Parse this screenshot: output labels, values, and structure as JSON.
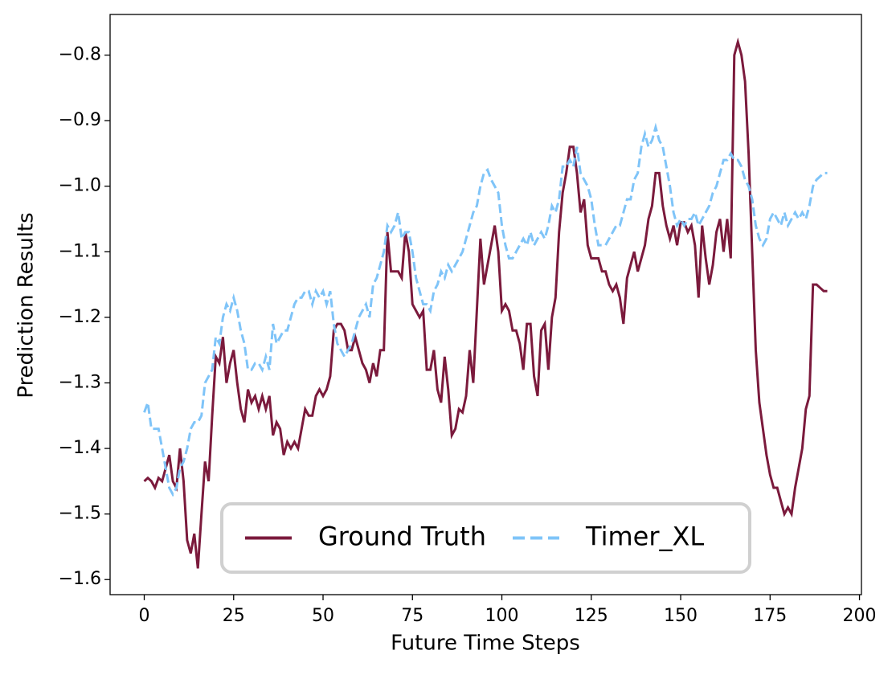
{
  "chart_data": {
    "type": "line",
    "x_label": "Future Time Steps",
    "y_label": "Prediction Results",
    "x": [
      0,
      1,
      2,
      3,
      4,
      5,
      6,
      7,
      8,
      9,
      10,
      11,
      12,
      13,
      14,
      15,
      16,
      17,
      18,
      19,
      20,
      21,
      22,
      23,
      24,
      25,
      26,
      27,
      28,
      29,
      30,
      31,
      32,
      33,
      34,
      35,
      36,
      37,
      38,
      39,
      40,
      41,
      42,
      43,
      44,
      45,
      46,
      47,
      48,
      49,
      50,
      51,
      52,
      53,
      54,
      55,
      56,
      57,
      58,
      59,
      60,
      61,
      62,
      63,
      64,
      65,
      66,
      67,
      68,
      69,
      70,
      71,
      72,
      73,
      74,
      75,
      76,
      77,
      78,
      79,
      80,
      81,
      82,
      83,
      84,
      85,
      86,
      87,
      88,
      89,
      90,
      91,
      92,
      93,
      94,
      95,
      96,
      97,
      98,
      99,
      100,
      101,
      102,
      103,
      104,
      105,
      106,
      107,
      108,
      109,
      110,
      111,
      112,
      113,
      114,
      115,
      116,
      117,
      118,
      119,
      120,
      121,
      122,
      123,
      124,
      125,
      126,
      127,
      128,
      129,
      130,
      131,
      132,
      133,
      134,
      135,
      136,
      137,
      138,
      139,
      140,
      141,
      142,
      143,
      144,
      145,
      146,
      147,
      148,
      149,
      150,
      151,
      152,
      153,
      154,
      155,
      156,
      157,
      158,
      159,
      160,
      161,
      162,
      163,
      164,
      165,
      166,
      167,
      168,
      169,
      170,
      171,
      172,
      173,
      174,
      175,
      176,
      177,
      178,
      179,
      180,
      181,
      182,
      183,
      184,
      185,
      186,
      187,
      188,
      189,
      190,
      191
    ],
    "series": [
      {
        "name": "Ground Truth",
        "color": "#7b1a3c",
        "style": "solid",
        "values": [
          -1.45,
          -1.445,
          -1.45,
          -1.46,
          -1.445,
          -1.45,
          -1.43,
          -1.41,
          -1.45,
          -1.46,
          -1.4,
          -1.45,
          -1.54,
          -1.56,
          -1.53,
          -1.583,
          -1.5,
          -1.42,
          -1.45,
          -1.35,
          -1.26,
          -1.27,
          -1.23,
          -1.3,
          -1.27,
          -1.25,
          -1.3,
          -1.34,
          -1.36,
          -1.31,
          -1.33,
          -1.32,
          -1.34,
          -1.32,
          -1.34,
          -1.32,
          -1.38,
          -1.36,
          -1.37,
          -1.41,
          -1.39,
          -1.4,
          -1.39,
          -1.4,
          -1.37,
          -1.34,
          -1.35,
          -1.35,
          -1.32,
          -1.31,
          -1.32,
          -1.31,
          -1.29,
          -1.22,
          -1.21,
          -1.21,
          -1.22,
          -1.25,
          -1.25,
          -1.23,
          -1.25,
          -1.27,
          -1.28,
          -1.3,
          -1.27,
          -1.29,
          -1.25,
          -1.25,
          -1.07,
          -1.13,
          -1.13,
          -1.13,
          -1.14,
          -1.07,
          -1.1,
          -1.18,
          -1.19,
          -1.2,
          -1.19,
          -1.28,
          -1.28,
          -1.25,
          -1.31,
          -1.33,
          -1.26,
          -1.31,
          -1.38,
          -1.37,
          -1.34,
          -1.345,
          -1.32,
          -1.25,
          -1.3,
          -1.19,
          -1.08,
          -1.15,
          -1.12,
          -1.09,
          -1.06,
          -1.1,
          -1.19,
          -1.18,
          -1.19,
          -1.22,
          -1.22,
          -1.24,
          -1.28,
          -1.21,
          -1.21,
          -1.29,
          -1.32,
          -1.22,
          -1.21,
          -1.28,
          -1.2,
          -1.17,
          -1.07,
          -1.01,
          -0.98,
          -0.94,
          -0.94,
          -0.98,
          -1.04,
          -1.02,
          -1.09,
          -1.11,
          -1.11,
          -1.11,
          -1.13,
          -1.13,
          -1.15,
          -1.16,
          -1.15,
          -1.17,
          -1.21,
          -1.14,
          -1.12,
          -1.1,
          -1.13,
          -1.11,
          -1.09,
          -1.05,
          -1.03,
          -0.98,
          -0.98,
          -1.03,
          -1.06,
          -1.08,
          -1.06,
          -1.09,
          -1.055,
          -1.055,
          -1.07,
          -1.06,
          -1.09,
          -1.17,
          -1.06,
          -1.11,
          -1.15,
          -1.12,
          -1.07,
          -1.05,
          -1.1,
          -1.05,
          -1.11,
          -0.8,
          -0.78,
          -0.8,
          -0.84,
          -0.95,
          -1.1,
          -1.25,
          -1.33,
          -1.37,
          -1.41,
          -1.44,
          -1.46,
          -1.46,
          -1.48,
          -1.5,
          -1.49,
          -1.5,
          -1.46,
          -1.43,
          -1.4,
          -1.34,
          -1.32,
          -1.15,
          -1.15,
          -1.155,
          -1.16,
          -1.16
        ]
      },
      {
        "name": "Timer_XL",
        "color": "#7fc4f8",
        "style": "dashed",
        "values": [
          -1.345,
          -1.33,
          -1.37,
          -1.37,
          -1.37,
          -1.4,
          -1.43,
          -1.46,
          -1.47,
          -1.46,
          -1.43,
          -1.42,
          -1.4,
          -1.37,
          -1.36,
          -1.36,
          -1.35,
          -1.3,
          -1.29,
          -1.28,
          -1.23,
          -1.24,
          -1.2,
          -1.18,
          -1.19,
          -1.17,
          -1.19,
          -1.22,
          -1.24,
          -1.28,
          -1.28,
          -1.27,
          -1.27,
          -1.28,
          -1.26,
          -1.28,
          -1.21,
          -1.24,
          -1.23,
          -1.22,
          -1.22,
          -1.2,
          -1.18,
          -1.17,
          -1.17,
          -1.16,
          -1.16,
          -1.18,
          -1.16,
          -1.17,
          -1.16,
          -1.18,
          -1.16,
          -1.21,
          -1.24,
          -1.25,
          -1.26,
          -1.25,
          -1.24,
          -1.22,
          -1.2,
          -1.19,
          -1.18,
          -1.2,
          -1.15,
          -1.14,
          -1.12,
          -1.1,
          -1.06,
          -1.07,
          -1.06,
          -1.04,
          -1.08,
          -1.07,
          -1.07,
          -1.1,
          -1.14,
          -1.16,
          -1.18,
          -1.18,
          -1.19,
          -1.16,
          -1.15,
          -1.13,
          -1.14,
          -1.12,
          -1.13,
          -1.12,
          -1.11,
          -1.1,
          -1.08,
          -1.06,
          -1.04,
          -1.03,
          -1.0,
          -0.98,
          -0.975,
          -0.99,
          -1.0,
          -1.01,
          -1.06,
          -1.09,
          -1.11,
          -1.11,
          -1.1,
          -1.09,
          -1.08,
          -1.09,
          -1.07,
          -1.09,
          -1.08,
          -1.07,
          -1.08,
          -1.06,
          -1.03,
          -1.04,
          -1.02,
          -0.97,
          -0.97,
          -0.96,
          -0.97,
          -0.94,
          -0.98,
          -0.99,
          -1.0,
          -1.02,
          -1.06,
          -1.09,
          -1.09,
          -1.09,
          -1.08,
          -1.07,
          -1.06,
          -1.06,
          -1.04,
          -1.02,
          -1.02,
          -0.99,
          -0.98,
          -0.94,
          -0.92,
          -0.94,
          -0.93,
          -0.91,
          -0.93,
          -0.94,
          -0.97,
          -1.0,
          -1.04,
          -1.06,
          -1.05,
          -1.06,
          -1.05,
          -1.05,
          -1.04,
          -1.06,
          -1.05,
          -1.04,
          -1.03,
          -1.01,
          -1.0,
          -0.98,
          -0.96,
          -0.96,
          -0.95,
          -0.96,
          -0.96,
          -0.97,
          -0.99,
          -1.0,
          -1.02,
          -1.06,
          -1.08,
          -1.09,
          -1.08,
          -1.05,
          -1.04,
          -1.05,
          -1.06,
          -1.04,
          -1.06,
          -1.05,
          -1.04,
          -1.05,
          -1.04,
          -1.05,
          -1.03,
          -1.0,
          -0.99,
          -0.985,
          -0.98,
          -0.98
        ]
      }
    ],
    "xlim": [
      -9.55,
      200.55
    ],
    "ylim": [
      -1.623,
      -0.738
    ],
    "xticks": [
      0,
      25,
      50,
      75,
      100,
      125,
      150,
      175,
      200
    ],
    "yticks": [
      {
        "value": -1.6,
        "label": "−1.6"
      },
      {
        "value": -1.5,
        "label": "−1.5"
      },
      {
        "value": -1.4,
        "label": "−1.4"
      },
      {
        "value": -1.3,
        "label": "−1.3"
      },
      {
        "value": -1.2,
        "label": "−1.2"
      },
      {
        "value": -1.1,
        "label": "−1.1"
      },
      {
        "value": -1.0,
        "label": "−1.0"
      },
      {
        "value": -0.9,
        "label": "−0.9"
      },
      {
        "value": -0.8,
        "label": "−0.8"
      }
    ],
    "grid": false,
    "legend_loc": "lower center"
  }
}
